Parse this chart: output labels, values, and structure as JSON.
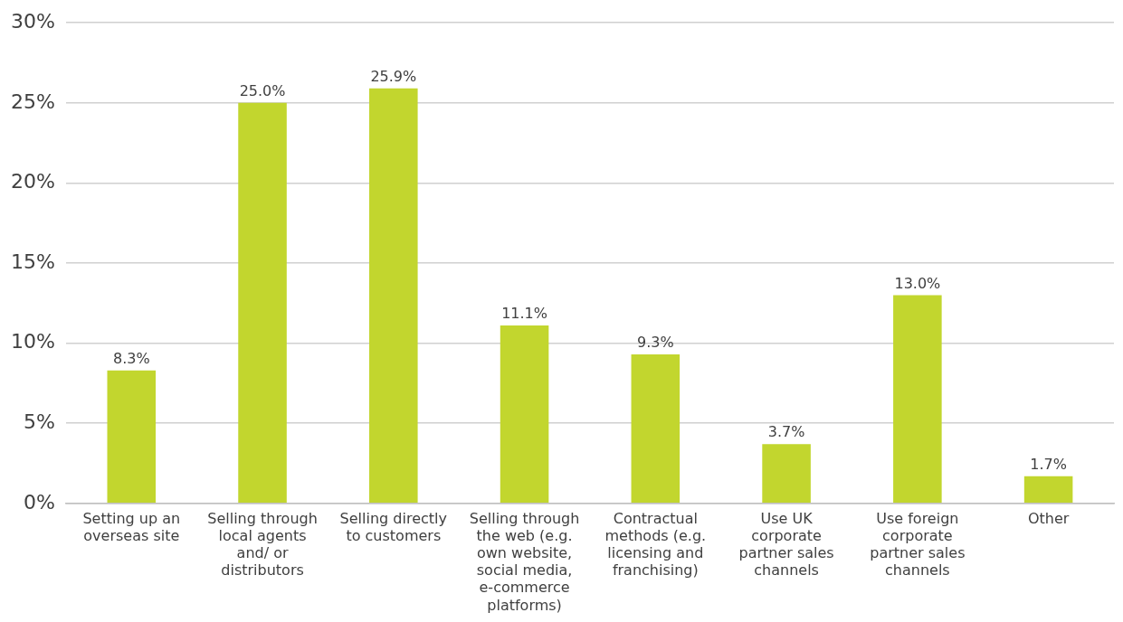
{
  "chart_data": {
    "type": "bar",
    "categories": [
      "Setting up an overseas site",
      "Selling through local agents and/ or distributors",
      "Selling directly to customers",
      "Selling through the web (e.g. own website, social media, e-commerce platforms)",
      "Contractual methods (e.g. licensing and franchising)",
      "Use UK corporate partner sales channels",
      "Use foreign corporate partner sales channels",
      "Other"
    ],
    "values": [
      8.3,
      25.0,
      25.9,
      11.1,
      9.3,
      3.7,
      13.0,
      1.7
    ],
    "value_labels": [
      "8.3%",
      "25.0%",
      "25.9%",
      "11.1%",
      "9.3%",
      "3.7%",
      "13.0%",
      "1.7%"
    ],
    "color": "#c2d62e",
    "ylim": [
      0,
      30
    ],
    "yticks": [
      {
        "value": 0,
        "label": "0%"
      },
      {
        "value": 5,
        "label": "5%"
      },
      {
        "value": 10,
        "label": "10%"
      },
      {
        "value": 15,
        "label": "15%"
      },
      {
        "value": 20,
        "label": "20%"
      },
      {
        "value": 25,
        "label": "25%"
      },
      {
        "value": 30,
        "label": "30%"
      }
    ],
    "grid": "y",
    "legend": false
  }
}
